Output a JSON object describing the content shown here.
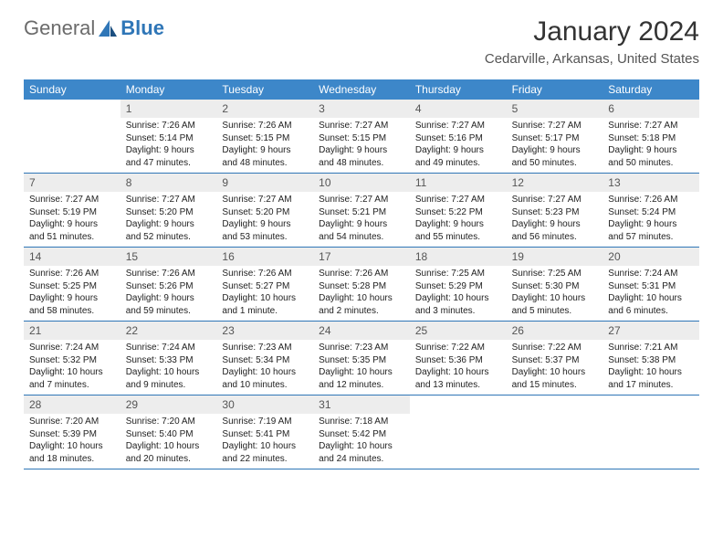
{
  "logo": {
    "word1": "General",
    "word2": "Blue",
    "accent_color": "#2f76b7"
  },
  "title": "January 2024",
  "location": "Cedarville, Arkansas, United States",
  "colors": {
    "header_bg": "#3d87c9",
    "week_border": "#2f76b7",
    "daynum_bg": "#ededed",
    "text": "#222222"
  },
  "days_of_week": [
    "Sunday",
    "Monday",
    "Tuesday",
    "Wednesday",
    "Thursday",
    "Friday",
    "Saturday"
  ],
  "weeks": [
    [
      {
        "n": "",
        "sunrise": "",
        "sunset": "",
        "daylight": "",
        "empty": true
      },
      {
        "n": "1",
        "sunrise": "Sunrise: 7:26 AM",
        "sunset": "Sunset: 5:14 PM",
        "daylight": "Daylight: 9 hours and 47 minutes."
      },
      {
        "n": "2",
        "sunrise": "Sunrise: 7:26 AM",
        "sunset": "Sunset: 5:15 PM",
        "daylight": "Daylight: 9 hours and 48 minutes."
      },
      {
        "n": "3",
        "sunrise": "Sunrise: 7:27 AM",
        "sunset": "Sunset: 5:15 PM",
        "daylight": "Daylight: 9 hours and 48 minutes."
      },
      {
        "n": "4",
        "sunrise": "Sunrise: 7:27 AM",
        "sunset": "Sunset: 5:16 PM",
        "daylight": "Daylight: 9 hours and 49 minutes."
      },
      {
        "n": "5",
        "sunrise": "Sunrise: 7:27 AM",
        "sunset": "Sunset: 5:17 PM",
        "daylight": "Daylight: 9 hours and 50 minutes."
      },
      {
        "n": "6",
        "sunrise": "Sunrise: 7:27 AM",
        "sunset": "Sunset: 5:18 PM",
        "daylight": "Daylight: 9 hours and 50 minutes."
      }
    ],
    [
      {
        "n": "7",
        "sunrise": "Sunrise: 7:27 AM",
        "sunset": "Sunset: 5:19 PM",
        "daylight": "Daylight: 9 hours and 51 minutes."
      },
      {
        "n": "8",
        "sunrise": "Sunrise: 7:27 AM",
        "sunset": "Sunset: 5:20 PM",
        "daylight": "Daylight: 9 hours and 52 minutes."
      },
      {
        "n": "9",
        "sunrise": "Sunrise: 7:27 AM",
        "sunset": "Sunset: 5:20 PM",
        "daylight": "Daylight: 9 hours and 53 minutes."
      },
      {
        "n": "10",
        "sunrise": "Sunrise: 7:27 AM",
        "sunset": "Sunset: 5:21 PM",
        "daylight": "Daylight: 9 hours and 54 minutes."
      },
      {
        "n": "11",
        "sunrise": "Sunrise: 7:27 AM",
        "sunset": "Sunset: 5:22 PM",
        "daylight": "Daylight: 9 hours and 55 minutes."
      },
      {
        "n": "12",
        "sunrise": "Sunrise: 7:27 AM",
        "sunset": "Sunset: 5:23 PM",
        "daylight": "Daylight: 9 hours and 56 minutes."
      },
      {
        "n": "13",
        "sunrise": "Sunrise: 7:26 AM",
        "sunset": "Sunset: 5:24 PM",
        "daylight": "Daylight: 9 hours and 57 minutes."
      }
    ],
    [
      {
        "n": "14",
        "sunrise": "Sunrise: 7:26 AM",
        "sunset": "Sunset: 5:25 PM",
        "daylight": "Daylight: 9 hours and 58 minutes."
      },
      {
        "n": "15",
        "sunrise": "Sunrise: 7:26 AM",
        "sunset": "Sunset: 5:26 PM",
        "daylight": "Daylight: 9 hours and 59 minutes."
      },
      {
        "n": "16",
        "sunrise": "Sunrise: 7:26 AM",
        "sunset": "Sunset: 5:27 PM",
        "daylight": "Daylight: 10 hours and 1 minute."
      },
      {
        "n": "17",
        "sunrise": "Sunrise: 7:26 AM",
        "sunset": "Sunset: 5:28 PM",
        "daylight": "Daylight: 10 hours and 2 minutes."
      },
      {
        "n": "18",
        "sunrise": "Sunrise: 7:25 AM",
        "sunset": "Sunset: 5:29 PM",
        "daylight": "Daylight: 10 hours and 3 minutes."
      },
      {
        "n": "19",
        "sunrise": "Sunrise: 7:25 AM",
        "sunset": "Sunset: 5:30 PM",
        "daylight": "Daylight: 10 hours and 5 minutes."
      },
      {
        "n": "20",
        "sunrise": "Sunrise: 7:24 AM",
        "sunset": "Sunset: 5:31 PM",
        "daylight": "Daylight: 10 hours and 6 minutes."
      }
    ],
    [
      {
        "n": "21",
        "sunrise": "Sunrise: 7:24 AM",
        "sunset": "Sunset: 5:32 PM",
        "daylight": "Daylight: 10 hours and 7 minutes."
      },
      {
        "n": "22",
        "sunrise": "Sunrise: 7:24 AM",
        "sunset": "Sunset: 5:33 PM",
        "daylight": "Daylight: 10 hours and 9 minutes."
      },
      {
        "n": "23",
        "sunrise": "Sunrise: 7:23 AM",
        "sunset": "Sunset: 5:34 PM",
        "daylight": "Daylight: 10 hours and 10 minutes."
      },
      {
        "n": "24",
        "sunrise": "Sunrise: 7:23 AM",
        "sunset": "Sunset: 5:35 PM",
        "daylight": "Daylight: 10 hours and 12 minutes."
      },
      {
        "n": "25",
        "sunrise": "Sunrise: 7:22 AM",
        "sunset": "Sunset: 5:36 PM",
        "daylight": "Daylight: 10 hours and 13 minutes."
      },
      {
        "n": "26",
        "sunrise": "Sunrise: 7:22 AM",
        "sunset": "Sunset: 5:37 PM",
        "daylight": "Daylight: 10 hours and 15 minutes."
      },
      {
        "n": "27",
        "sunrise": "Sunrise: 7:21 AM",
        "sunset": "Sunset: 5:38 PM",
        "daylight": "Daylight: 10 hours and 17 minutes."
      }
    ],
    [
      {
        "n": "28",
        "sunrise": "Sunrise: 7:20 AM",
        "sunset": "Sunset: 5:39 PM",
        "daylight": "Daylight: 10 hours and 18 minutes."
      },
      {
        "n": "29",
        "sunrise": "Sunrise: 7:20 AM",
        "sunset": "Sunset: 5:40 PM",
        "daylight": "Daylight: 10 hours and 20 minutes."
      },
      {
        "n": "30",
        "sunrise": "Sunrise: 7:19 AM",
        "sunset": "Sunset: 5:41 PM",
        "daylight": "Daylight: 10 hours and 22 minutes."
      },
      {
        "n": "31",
        "sunrise": "Sunrise: 7:18 AM",
        "sunset": "Sunset: 5:42 PM",
        "daylight": "Daylight: 10 hours and 24 minutes."
      },
      {
        "n": "",
        "sunrise": "",
        "sunset": "",
        "daylight": "",
        "empty": true
      },
      {
        "n": "",
        "sunrise": "",
        "sunset": "",
        "daylight": "",
        "empty": true
      },
      {
        "n": "",
        "sunrise": "",
        "sunset": "",
        "daylight": "",
        "empty": true
      }
    ]
  ]
}
